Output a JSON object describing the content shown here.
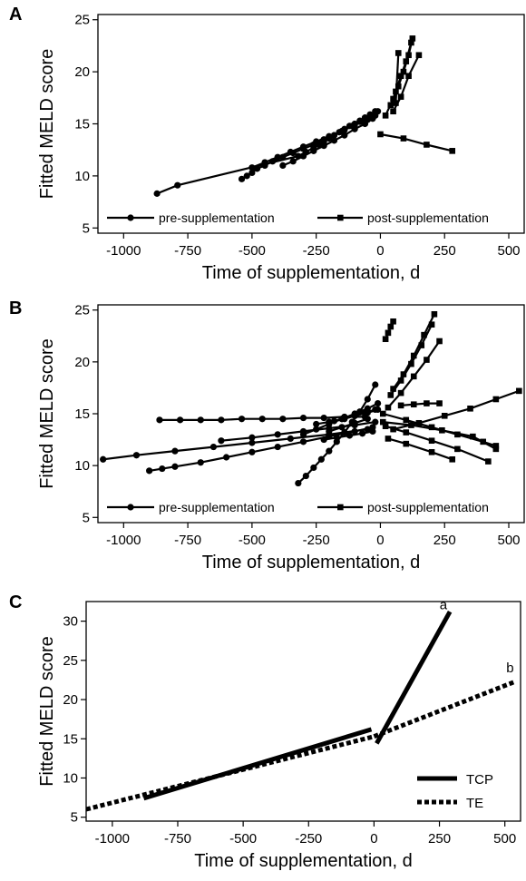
{
  "chart_data": [
    {
      "type": "line",
      "panel_label": "A",
      "xlabel": "Time of supplementation, d",
      "ylabel": "Fitted MELD score",
      "xlim": [
        -1100,
        560
      ],
      "ylim": [
        4.5,
        25.5
      ],
      "xticks": [
        -1000,
        -750,
        -500,
        -250,
        0,
        250,
        500
      ],
      "yticks": [
        5,
        10,
        15,
        20,
        25
      ],
      "xtick_labels": [
        "-1000",
        "-750",
        "-500",
        "-250",
        "0",
        "250",
        "500"
      ],
      "ytick_labels": [
        "5",
        "10",
        "15",
        "20",
        "25"
      ],
      "legend": {
        "placement": "bottom",
        "entries": [
          {
            "label": "pre-supplementation",
            "marker": "circle"
          },
          {
            "label": "post-supplementation",
            "marker": "square"
          }
        ]
      },
      "series": [
        {
          "group": "pre",
          "x": [
            -870,
            -790,
            -320,
            -290,
            -260,
            -240,
            -220,
            -200,
            -180,
            -160,
            -140,
            -120,
            -100,
            -80,
            -60,
            -40,
            -20
          ],
          "y": [
            8.3,
            9.1,
            11.9,
            12.3,
            12.7,
            13.0,
            13.3,
            13.6,
            13.9,
            14.2,
            14.5,
            14.8,
            15.0,
            15.3,
            15.6,
            15.9,
            16.2
          ]
        },
        {
          "group": "pre",
          "x": [
            -540,
            -520,
            -500,
            -480,
            -450,
            -420,
            -380,
            -340,
            -300,
            -260,
            -220,
            -180,
            -140,
            -110,
            -80,
            -60,
            -40
          ],
          "y": [
            9.7,
            10.0,
            10.3,
            10.7,
            11.0,
            11.4,
            11.8,
            12.2,
            12.6,
            13.0,
            13.5,
            13.9,
            14.4,
            14.8,
            15.2,
            15.5,
            15.8
          ]
        },
        {
          "group": "pre",
          "x": [
            -500,
            -450,
            -400,
            -350,
            -300,
            -250,
            -200,
            -150,
            -100,
            -50,
            -20
          ],
          "y": [
            10.8,
            11.3,
            11.8,
            12.3,
            12.8,
            13.3,
            13.8,
            14.3,
            14.9,
            15.4,
            15.8
          ]
        },
        {
          "group": "pre",
          "x": [
            -380,
            -340,
            -300,
            -260,
            -220,
            -180,
            -140,
            -100,
            -60,
            -30,
            -10
          ],
          "y": [
            11.0,
            11.4,
            11.9,
            12.4,
            12.9,
            13.4,
            13.9,
            14.5,
            15.0,
            15.5,
            16.2
          ]
        },
        {
          "group": "post",
          "x": [
            0,
            90,
            180,
            280
          ],
          "y": [
            14.0,
            13.6,
            13.0,
            12.4
          ]
        },
        {
          "group": "post",
          "x": [
            20,
            50,
            70,
            90,
            110,
            125
          ],
          "y": [
            15.8,
            17.4,
            18.6,
            20.0,
            21.6,
            23.2
          ]
        },
        {
          "group": "post",
          "x": [
            40,
            60,
            80,
            100,
            120
          ],
          "y": [
            16.8,
            18.1,
            19.6,
            21.0,
            22.8
          ]
        },
        {
          "group": "post",
          "x": [
            50,
            80,
            110,
            150
          ],
          "y": [
            16.2,
            17.6,
            19.6,
            21.6
          ]
        },
        {
          "group": "post",
          "x": [
            60,
            70
          ],
          "y": [
            17.0,
            21.8
          ]
        }
      ]
    },
    {
      "type": "line",
      "panel_label": "B",
      "xlabel": "Time of supplementation, d",
      "ylabel": "Fitted MELD score",
      "xlim": [
        -1100,
        560
      ],
      "ylim": [
        4.5,
        25.5
      ],
      "xticks": [
        -1000,
        -750,
        -500,
        -250,
        0,
        250,
        500
      ],
      "yticks": [
        5,
        10,
        15,
        20,
        25
      ],
      "xtick_labels": [
        "-1000",
        "-750",
        "-500",
        "-250",
        "0",
        "250",
        "500"
      ],
      "ytick_labels": [
        "5",
        "10",
        "15",
        "20",
        "25"
      ],
      "legend": {
        "placement": "bottom",
        "entries": [
          {
            "label": "pre-supplementation",
            "marker": "circle"
          },
          {
            "label": "post-supplementation",
            "marker": "square"
          }
        ]
      },
      "series": [
        {
          "group": "pre",
          "x": [
            -1080,
            -950,
            -800,
            -650,
            -500,
            -350,
            -200,
            -50
          ],
          "y": [
            10.6,
            11.0,
            11.4,
            11.8,
            12.2,
            12.6,
            13.0,
            13.5
          ]
        },
        {
          "group": "pre",
          "x": [
            -900,
            -850,
            -800,
            -700,
            -600,
            -500,
            -400,
            -300,
            -200,
            -100,
            -30
          ],
          "y": [
            9.5,
            9.7,
            9.9,
            10.3,
            10.8,
            11.3,
            11.8,
            12.3,
            12.8,
            13.3,
            13.7
          ]
        },
        {
          "group": "pre",
          "x": [
            -860,
            -780,
            -700,
            -620,
            -540,
            -460,
            -380,
            -300,
            -220,
            -140,
            -60
          ],
          "y": [
            14.4,
            14.4,
            14.4,
            14.4,
            14.5,
            14.5,
            14.5,
            14.6,
            14.6,
            14.7,
            14.7
          ]
        },
        {
          "group": "pre",
          "x": [
            -620,
            -500,
            -400,
            -300,
            -200,
            -100,
            -20
          ],
          "y": [
            12.4,
            12.7,
            13.0,
            13.3,
            13.6,
            13.9,
            14.2
          ]
        },
        {
          "group": "pre",
          "x": [
            -320,
            -290,
            -260,
            -230,
            -200,
            -170,
            -140,
            -110,
            -80,
            -50,
            -20
          ],
          "y": [
            8.3,
            9.0,
            9.8,
            10.6,
            11.4,
            12.3,
            13.2,
            14.2,
            15.2,
            16.4,
            17.8
          ]
        },
        {
          "group": "pre",
          "x": [
            -300,
            -250,
            -200,
            -150,
            -100,
            -50,
            -10
          ],
          "y": [
            13.0,
            13.5,
            14.0,
            14.5,
            15.0,
            15.5,
            16.0
          ]
        },
        {
          "group": "pre",
          "x": [
            -250,
            -200,
            -150,
            -100,
            -50,
            -10
          ],
          "y": [
            14.0,
            14.2,
            14.5,
            14.8,
            15.1,
            15.4
          ]
        },
        {
          "group": "pre",
          "x": [
            -220,
            -170,
            -120,
            -70,
            -30
          ],
          "y": [
            12.5,
            12.7,
            12.9,
            13.1,
            13.3
          ]
        },
        {
          "group": "pre",
          "x": [
            -200,
            -150,
            -100,
            -50
          ],
          "y": [
            13.3,
            13.7,
            14.1,
            14.5
          ]
        },
        {
          "group": "pre",
          "x": [
            -180,
            -140,
            -100,
            -60,
            -20
          ],
          "y": [
            14.3,
            14.5,
            14.8,
            15.1,
            15.4
          ]
        },
        {
          "group": "post",
          "x": [
            10,
            100,
            200,
            300,
            400,
            450
          ],
          "y": [
            15.0,
            14.4,
            13.7,
            13.0,
            12.3,
            11.9
          ]
        },
        {
          "group": "post",
          "x": [
            20,
            100,
            200,
            300,
            420
          ],
          "y": [
            13.8,
            13.2,
            12.4,
            11.6,
            10.4
          ]
        },
        {
          "group": "post",
          "x": [
            30,
            100,
            200,
            280
          ],
          "y": [
            12.6,
            12.1,
            11.3,
            10.6
          ]
        },
        {
          "group": "post",
          "x": [
            50,
            150,
            250,
            350,
            450,
            540
          ],
          "y": [
            13.5,
            14.1,
            14.8,
            15.5,
            16.4,
            17.2
          ]
        },
        {
          "group": "post",
          "x": [
            80,
            130,
            180,
            230
          ],
          "y": [
            15.8,
            15.9,
            16.0,
            16.0
          ]
        },
        {
          "group": "post",
          "x": [
            30,
            80,
            130,
            180,
            230
          ],
          "y": [
            15.6,
            17.0,
            18.6,
            20.2,
            22.0
          ]
        },
        {
          "group": "post",
          "x": [
            40,
            80,
            120,
            160,
            200
          ],
          "y": [
            16.8,
            18.2,
            19.8,
            21.6,
            23.6
          ]
        },
        {
          "group": "post",
          "x": [
            50,
            90,
            130,
            170,
            210
          ],
          "y": [
            17.4,
            18.8,
            20.6,
            22.6,
            24.6
          ]
        },
        {
          "group": "post",
          "x": [
            20,
            30,
            40,
            50
          ],
          "y": [
            22.2,
            22.8,
            23.4,
            23.9
          ]
        },
        {
          "group": "post",
          "x": [
            10,
            120,
            240,
            360,
            450
          ],
          "y": [
            14.2,
            13.9,
            13.4,
            12.8,
            11.6
          ]
        }
      ]
    },
    {
      "type": "line",
      "panel_label": "C",
      "xlabel": "Time of supplementation, d",
      "ylabel": "Fitted MELD score",
      "xlim": [
        -1100,
        560
      ],
      "ylim": [
        4.5,
        32.5
      ],
      "xticks": [
        -1000,
        -750,
        -500,
        -250,
        0,
        250,
        500
      ],
      "yticks": [
        5,
        10,
        15,
        20,
        25,
        30
      ],
      "xtick_labels": [
        "-1000",
        "-750",
        "-500",
        "-250",
        "0",
        "250",
        "500"
      ],
      "ytick_labels": [
        "5",
        "10",
        "15",
        "20",
        "25",
        "30"
      ],
      "legend": {
        "placement": "bottom-right",
        "entries": [
          {
            "label": "TCP",
            "style": "solid"
          },
          {
            "label": "TE",
            "style": "dotted"
          }
        ]
      },
      "annotations": [
        {
          "text": "a",
          "x": 265,
          "y": 31.5
        },
        {
          "text": "b",
          "x": 520,
          "y": 23.5
        }
      ],
      "series": [
        {
          "group": "TCP",
          "x": [
            -880,
            -10
          ],
          "y": [
            7.4,
            16.2
          ]
        },
        {
          "group": "TCP",
          "x": [
            10,
            290
          ],
          "y": [
            14.4,
            31.2
          ]
        },
        {
          "group": "TE",
          "x": [
            -1100,
            0
          ],
          "y": [
            6.0,
            15.3
          ]
        },
        {
          "group": "TE",
          "x": [
            0,
            540
          ],
          "y": [
            15.3,
            22.3
          ]
        }
      ]
    }
  ]
}
